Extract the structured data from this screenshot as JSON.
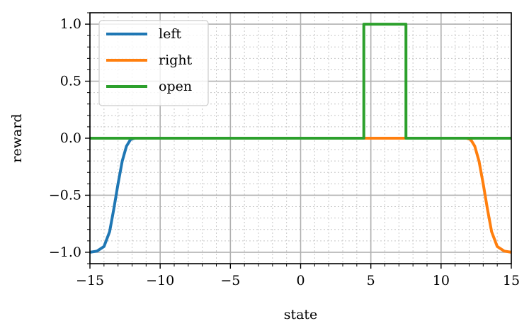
{
  "chart_data": {
    "type": "line",
    "xlabel": "state",
    "ylabel": "reward",
    "xlim": [
      -15,
      15
    ],
    "ylim": [
      -1.1,
      1.1
    ],
    "grid": true,
    "minor_grid": true,
    "legend_position": "top-left",
    "x_ticks": [
      -15,
      -10,
      -5,
      0,
      5,
      10,
      15
    ],
    "x_tick_labels": [
      "−15",
      "−10",
      "−5",
      "0",
      "5",
      "10",
      "15"
    ],
    "y_ticks": [
      -1.0,
      -0.5,
      0.0,
      0.5,
      1.0
    ],
    "y_tick_labels": [
      "−1.0",
      "−0.5",
      "0.0",
      "0.5",
      "1.0"
    ],
    "series": [
      {
        "name": "left",
        "color": "#1f77b4",
        "x": [
          -15,
          -14.5,
          -14.0,
          -13.6,
          -13.3,
          -13.0,
          -12.7,
          -12.4,
          -12.1,
          -11.8,
          -11.5,
          15
        ],
        "y": [
          -1.0,
          -0.99,
          -0.95,
          -0.82,
          -0.62,
          -0.4,
          -0.2,
          -0.07,
          -0.01,
          0.0,
          0.0,
          0.0
        ]
      },
      {
        "name": "right",
        "color": "#ff7f0e",
        "x": [
          -15,
          11.5,
          11.8,
          12.1,
          12.4,
          12.7,
          13.0,
          13.3,
          13.6,
          14.0,
          14.5,
          15
        ],
        "y": [
          0.0,
          0.0,
          0.0,
          -0.01,
          -0.07,
          -0.2,
          -0.4,
          -0.62,
          -0.82,
          -0.95,
          -0.99,
          -1.0
        ]
      },
      {
        "name": "open",
        "color": "#2ca02c",
        "x": [
          -15,
          4.5,
          4.5,
          7.5,
          7.5,
          15
        ],
        "y": [
          0.0,
          0.0,
          1.0,
          1.0,
          0.0,
          0.0
        ]
      }
    ]
  }
}
